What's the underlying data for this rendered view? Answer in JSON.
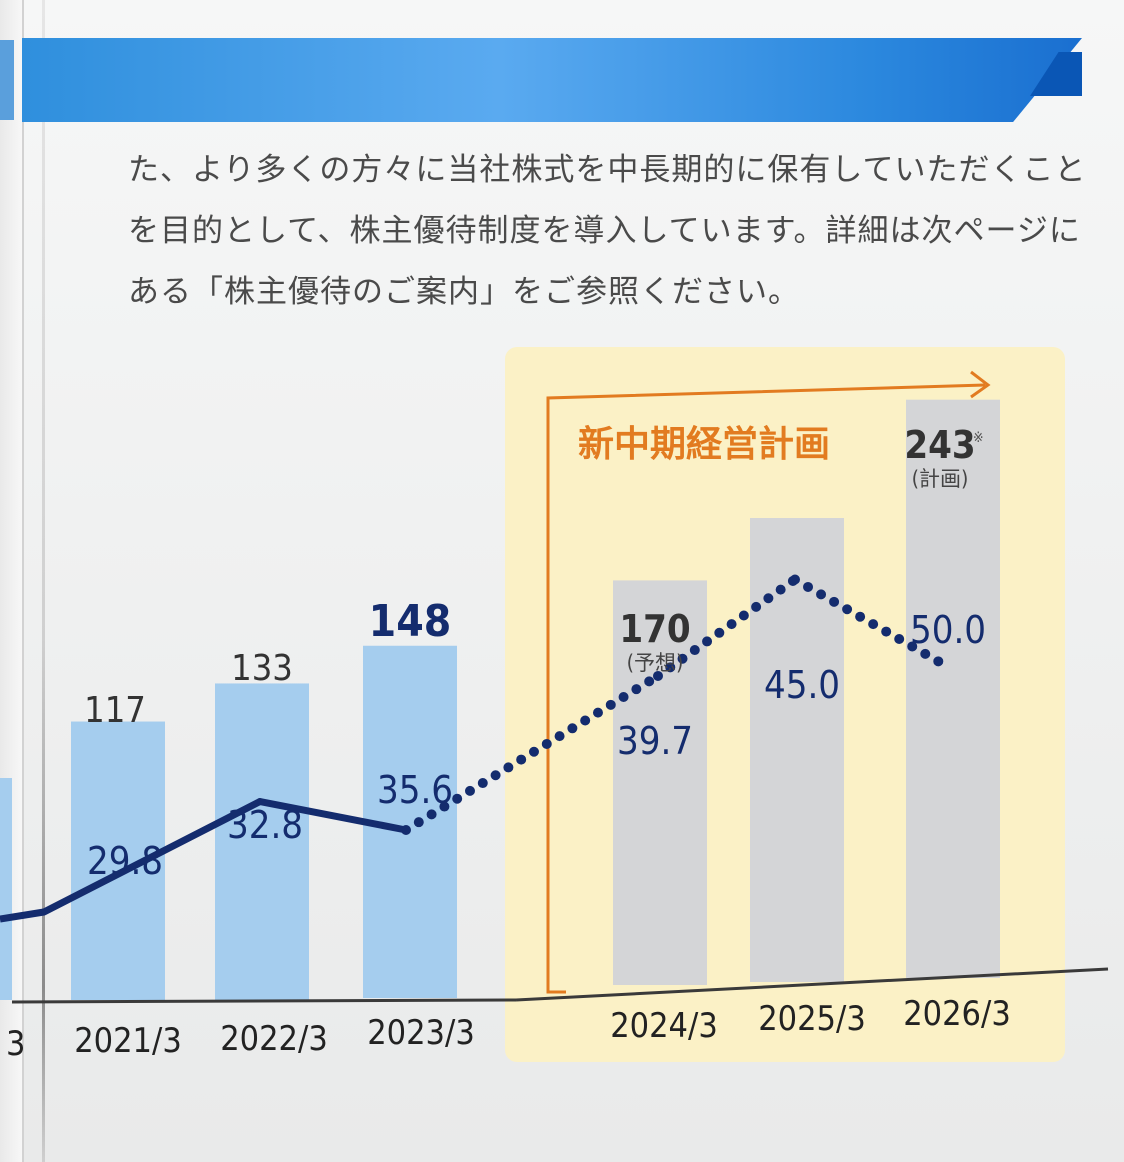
{
  "body_text": [
    "た、より多くの方々に当社株式を中長期的に保有していただくこと",
    "を目的として、株主優待制度を導入しています。詳細は次ページに",
    "ある「株主優待のご案内」をご参照ください。"
  ],
  "chart_data": {
    "type": "bar",
    "categories": [
      "2021/3",
      "2022/3",
      "2023/3",
      "2024/3",
      "2025/3",
      "2026/3"
    ],
    "partial_label_left": "3",
    "series": [
      {
        "values": [
          117,
          133,
          148,
          170,
          null,
          243
        ],
        "labels": [
          "117",
          "133",
          "148",
          "170",
          "",
          "243"
        ],
        "notes": [
          "",
          "",
          "",
          "(予想)",
          "",
          "(計画)"
        ],
        "footnote_marks": [
          "",
          "",
          "",
          "",
          "",
          "※"
        ],
        "colors": [
          "#a5cdee",
          "#a5cdee",
          "#a5cdee",
          "#d4d5d7",
          "#d4d5d7",
          "#d4d5d7"
        ]
      },
      {
        "type": "line",
        "values": [
          29.8,
          32.8,
          35.6,
          39.7,
          45.0,
          50.0
        ],
        "labels": [
          "29.8",
          "32.8",
          "35.6",
          "39.7",
          "45.0",
          "50.0"
        ],
        "line_style": [
          "solid",
          "solid",
          "dotted",
          "dotted",
          "dotted"
        ],
        "color": "#142c6e"
      }
    ],
    "plan_label": "新中期経営計画",
    "plan_color": "#e27b20",
    "plan_background": "#fbf1c6"
  }
}
